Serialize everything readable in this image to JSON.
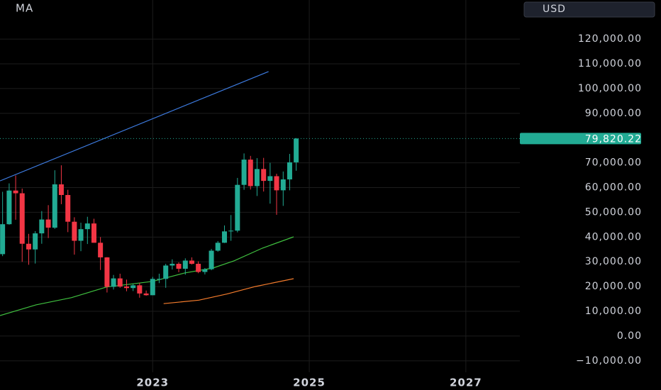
{
  "chart_data": {
    "type": "candlestick",
    "indicator_label": "MA",
    "currency": "USD",
    "x": [
      2021.083,
      2021.167,
      2021.25,
      2021.333,
      2021.417,
      2021.5,
      2021.583,
      2021.667,
      2021.75,
      2021.833,
      2021.917,
      2022,
      2022.083,
      2022.167,
      2022.25,
      2022.333,
      2022.417,
      2022.5,
      2022.583,
      2022.667,
      2022.75,
      2022.833,
      2022.917,
      2023,
      2023.083,
      2023.167,
      2023.25,
      2023.333,
      2023.417,
      2023.5,
      2023.583,
      2023.667,
      2023.75,
      2023.833,
      2023.917,
      2024,
      2024.083,
      2024.167,
      2024.25,
      2024.333,
      2024.417,
      2024.5,
      2024.583,
      2024.667,
      2024.75,
      2024.833
    ],
    "open": [
      33100,
      45200,
      58800,
      57700,
      37300,
      35000,
      41500,
      47100,
      43800,
      61300,
      57000,
      46200,
      38500,
      43200,
      45500,
      37700,
      31800,
      19900,
      23300,
      20000,
      19400,
      20500,
      17200,
      16500,
      23100,
      23100,
      28500,
      29200,
      27200,
      30500,
      29200,
      25900,
      27000,
      34500,
      37700,
      42300,
      42600,
      61100,
      71300,
      60600,
      67500,
      62700,
      64600,
      58900,
      63300,
      70200
    ],
    "high": [
      58300,
      61700,
      64900,
      59600,
      41300,
      42400,
      50500,
      52900,
      67000,
      69000,
      59100,
      48000,
      45800,
      48200,
      47400,
      40000,
      31900,
      24700,
      25200,
      22800,
      21100,
      21500,
      18400,
      23900,
      25200,
      29200,
      31000,
      29800,
      31400,
      31800,
      30200,
      27500,
      35200,
      38400,
      44700,
      48900,
      63900,
      73800,
      72800,
      71900,
      72000,
      70000,
      65600,
      66500,
      73600,
      80000
    ],
    "low": [
      32300,
      45000,
      47000,
      30000,
      28800,
      29300,
      37300,
      39600,
      43300,
      53300,
      42000,
      32900,
      34300,
      37200,
      37700,
      26700,
      17600,
      18800,
      19500,
      18100,
      18200,
      15500,
      16300,
      16500,
      21400,
      19500,
      26900,
      25800,
      24800,
      28900,
      25400,
      24900,
      26600,
      34100,
      37600,
      38500,
      41900,
      59100,
      59200,
      56600,
      58400,
      53500,
      49000,
      52600,
      58900,
      66800
    ],
    "close": [
      45200,
      58800,
      57700,
      37300,
      35000,
      41500,
      47100,
      43800,
      61300,
      57000,
      46200,
      38500,
      43200,
      45500,
      37700,
      31800,
      19900,
      23300,
      20000,
      19400,
      20500,
      17200,
      16500,
      23100,
      23100,
      28500,
      29200,
      27200,
      30500,
      29200,
      25900,
      27000,
      34500,
      37700,
      42300,
      42600,
      61100,
      71300,
      60600,
      67500,
      62700,
      64600,
      58900,
      63300,
      70200,
      79820.22
    ],
    "up_color": "#22ab94",
    "down_color": "#f23645",
    "overlays": [
      {
        "color": "#3fbf3f",
        "x": [
          2021.05,
          2021.51,
          2021.96,
          2022.41,
          2023.0,
          2023.41,
          2023.77,
          2024.04,
          2024.4,
          2024.8
        ],
        "values": [
          8300,
          12600,
          15500,
          19800,
          22100,
          25500,
          27500,
          30400,
          35500,
          40100
        ]
      },
      {
        "color": "#f57c2c",
        "x": [
          2023.14,
          2023.59,
          2023.95,
          2024.31,
          2024.8
        ],
        "values": [
          13100,
          14500,
          17000,
          20000,
          23200
        ]
      },
      {
        "color": "#3d7be0",
        "x": [
          2021.05,
          2024.48
        ],
        "values": [
          62700,
          106900
        ]
      }
    ],
    "last_price": {
      "value": 79820.22,
      "label": "79,820.22"
    },
    "xlim": [
      2021.05,
      2027.69
    ],
    "xticks": [
      2023,
      2025,
      2027
    ],
    "ylim": [
      -21800,
      135800
    ],
    "yticks": [
      {
        "value": -10000,
        "label": "−10,000.00"
      },
      {
        "value": 0,
        "label": "0.00"
      },
      {
        "value": 10000,
        "label": "10,000.00"
      },
      {
        "value": 20000,
        "label": "20,000.00"
      },
      {
        "value": 30000,
        "label": "30,000.00"
      },
      {
        "value": 40000,
        "label": "40,000.00"
      },
      {
        "value": 50000,
        "label": "50,000.00"
      },
      {
        "value": 60000,
        "label": "60,000.00"
      },
      {
        "value": 70000,
        "label": "70,000.00"
      },
      {
        "value": 90000,
        "label": "90,000.00"
      },
      {
        "value": 100000,
        "label": "100,000.00"
      },
      {
        "value": 110000,
        "label": "110,000.00"
      },
      {
        "value": 120000,
        "label": "120,000.00"
      }
    ],
    "grid": true
  }
}
